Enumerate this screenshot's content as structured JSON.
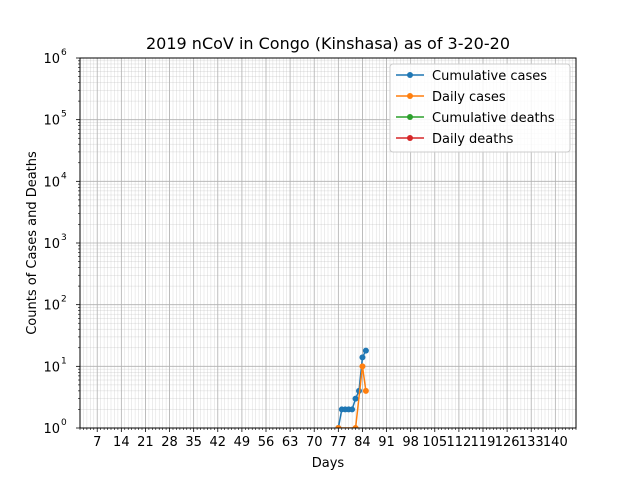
{
  "chart_data": {
    "type": "line",
    "title": "2019 nCoV in Congo (Kinshasa) as of 3-20-20",
    "xlabel": "Days",
    "ylabel": "Counts of Cases and Deaths",
    "xlim": [
      2,
      146
    ],
    "ylim": [
      1,
      1000000
    ],
    "yscale": "log",
    "grid": true,
    "legend_position": "top-right",
    "x_ticks": [
      7,
      14,
      21,
      28,
      35,
      42,
      49,
      56,
      63,
      70,
      77,
      84,
      91,
      98,
      105,
      112,
      119,
      126,
      133,
      140
    ],
    "x_tick_labels": [
      "7",
      "14",
      "21",
      "28",
      "35",
      "42",
      "49",
      "56",
      "63",
      "70",
      "77",
      "84",
      "91",
      "98",
      "105",
      "112",
      "119",
      "126",
      "133",
      "140"
    ],
    "y_ticks": [
      1,
      10,
      100,
      1000,
      10000,
      100000,
      1000000
    ],
    "y_tick_labels": [
      {
        "base": "10",
        "exp": "0"
      },
      {
        "base": "10",
        "exp": "1"
      },
      {
        "base": "10",
        "exp": "2"
      },
      {
        "base": "10",
        "exp": "3"
      },
      {
        "base": "10",
        "exp": "4"
      },
      {
        "base": "10",
        "exp": "5"
      },
      {
        "base": "10",
        "exp": "6"
      }
    ],
    "series": [
      {
        "name": "Cumulative cases",
        "color": "#1f77b4",
        "x": [
          77,
          78,
          79,
          80,
          81,
          82,
          83,
          84,
          85
        ],
        "y": [
          1,
          2,
          2,
          2,
          2,
          3,
          4,
          14,
          18
        ]
      },
      {
        "name": "Daily cases",
        "color": "#ff7f0e",
        "x": [
          77,
          82,
          84,
          85
        ],
        "y": [
          1,
          1,
          10,
          4
        ]
      },
      {
        "name": "Cumulative deaths",
        "color": "#2ca02c",
        "x": [],
        "y": []
      },
      {
        "name": "Daily deaths",
        "color": "#d62728",
        "x": [],
        "y": []
      }
    ]
  }
}
